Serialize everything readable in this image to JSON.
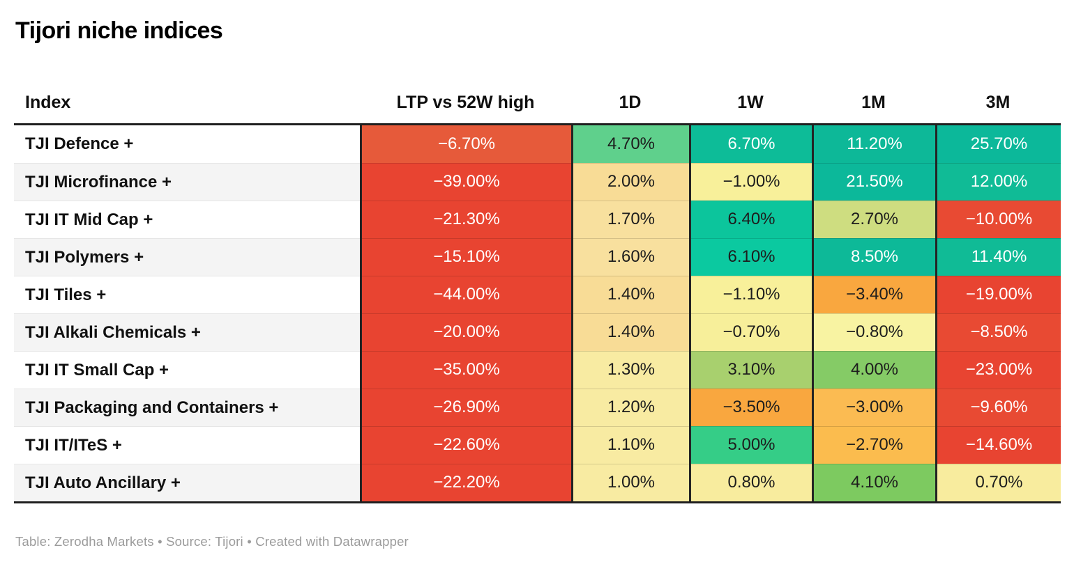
{
  "title": "Tijori niche indices",
  "footer": "Table: Zerodha Markets • Source: Tijori • Created with Datawrapper",
  "colors": {
    "border_dark": "#1f1f1f",
    "row_alt_bg": "#f4f4f4",
    "footer_text": "#9b9b9b",
    "red": "#e84431",
    "teal": "#0db898",
    "pale_yellow": "#f8eba2",
    "orange": "#f9a73f"
  },
  "table": {
    "columns": [
      {
        "key": "index",
        "label": "Index"
      },
      {
        "key": "ltp",
        "label": "LTP vs 52W high"
      },
      {
        "key": "d1",
        "label": "1D"
      },
      {
        "key": "w1",
        "label": "1W"
      },
      {
        "key": "m1",
        "label": "1M"
      },
      {
        "key": "m3",
        "label": "3M"
      }
    ],
    "rows": [
      {
        "label": "TJI Defence +",
        "ltp": {
          "v": "−6.70%",
          "bg": "#e65a3a",
          "fg": "#ffffff"
        },
        "d1": {
          "v": "4.70%",
          "bg": "#5fd08c",
          "fg": "#1d1d1d"
        },
        "w1": {
          "v": "6.70%",
          "bg": "#0dbc98",
          "fg": "#ffffff"
        },
        "m1": {
          "v": "11.20%",
          "bg": "#0db898",
          "fg": "#ffffff"
        },
        "m3": {
          "v": "25.70%",
          "bg": "#0cb89a",
          "fg": "#ffffff"
        }
      },
      {
        "label": "TJI Microfinance +",
        "ltp": {
          "v": "−39.00%",
          "bg": "#e84431",
          "fg": "#ffffff"
        },
        "d1": {
          "v": "2.00%",
          "bg": "#f8dc96",
          "fg": "#1d1d1d"
        },
        "w1": {
          "v": "−1.00%",
          "bg": "#f8f09a",
          "fg": "#1d1d1d"
        },
        "m1": {
          "v": "21.50%",
          "bg": "#0cb89a",
          "fg": "#ffffff"
        },
        "m3": {
          "v": "12.00%",
          "bg": "#10bb96",
          "fg": "#ffffff"
        }
      },
      {
        "label": "TJI IT Mid Cap +",
        "ltp": {
          "v": "−21.30%",
          "bg": "#e84431",
          "fg": "#ffffff"
        },
        "d1": {
          "v": "1.70%",
          "bg": "#f8e09e",
          "fg": "#1d1d1d"
        },
        "w1": {
          "v": "6.40%",
          "bg": "#0cc59c",
          "fg": "#1d1d1d"
        },
        "m1": {
          "v": "2.70%",
          "bg": "#cedd80",
          "fg": "#1d1d1d"
        },
        "m3": {
          "v": "−10.00%",
          "bg": "#e84a33",
          "fg": "#ffffff"
        }
      },
      {
        "label": "TJI Polymers +",
        "ltp": {
          "v": "−15.10%",
          "bg": "#e84431",
          "fg": "#ffffff"
        },
        "d1": {
          "v": "1.60%",
          "bg": "#f8e09e",
          "fg": "#1d1d1d"
        },
        "w1": {
          "v": "6.10%",
          "bg": "#0bc9a0",
          "fg": "#1d1d1d"
        },
        "m1": {
          "v": "8.50%",
          "bg": "#0db998",
          "fg": "#ffffff"
        },
        "m3": {
          "v": "11.40%",
          "bg": "#10bb96",
          "fg": "#ffffff"
        }
      },
      {
        "label": "TJI Tiles +",
        "ltp": {
          "v": "−44.00%",
          "bg": "#e84431",
          "fg": "#ffffff"
        },
        "d1": {
          "v": "1.40%",
          "bg": "#f8dc96",
          "fg": "#1d1d1d"
        },
        "w1": {
          "v": "−1.10%",
          "bg": "#f8f09a",
          "fg": "#1d1d1d"
        },
        "m1": {
          "v": "−3.40%",
          "bg": "#f9a73f",
          "fg": "#1d1d1d"
        },
        "m3": {
          "v": "−19.00%",
          "bg": "#e84431",
          "fg": "#ffffff"
        }
      },
      {
        "label": "TJI Alkali Chemicals +",
        "ltp": {
          "v": "−20.00%",
          "bg": "#e84431",
          "fg": "#ffffff"
        },
        "d1": {
          "v": "1.40%",
          "bg": "#f8dc96",
          "fg": "#1d1d1d"
        },
        "w1": {
          "v": "−0.70%",
          "bg": "#f7ef9a",
          "fg": "#1d1d1d"
        },
        "m1": {
          "v": "−0.80%",
          "bg": "#f8f3a2",
          "fg": "#1d1d1d"
        },
        "m3": {
          "v": "−8.50%",
          "bg": "#e84a33",
          "fg": "#ffffff"
        }
      },
      {
        "label": "TJI IT Small Cap +",
        "ltp": {
          "v": "−35.00%",
          "bg": "#e84431",
          "fg": "#ffffff"
        },
        "d1": {
          "v": "1.30%",
          "bg": "#f8eba2",
          "fg": "#1d1d1d"
        },
        "w1": {
          "v": "3.10%",
          "bg": "#a8d06e",
          "fg": "#1d1d1d"
        },
        "m1": {
          "v": "4.00%",
          "bg": "#85cb66",
          "fg": "#1d1d1d"
        },
        "m3": {
          "v": "−23.00%",
          "bg": "#e84431",
          "fg": "#ffffff"
        }
      },
      {
        "label": "TJI Packaging and Containers +",
        "ltp": {
          "v": "−26.90%",
          "bg": "#e84431",
          "fg": "#ffffff"
        },
        "d1": {
          "v": "1.20%",
          "bg": "#f8eba2",
          "fg": "#1d1d1d"
        },
        "w1": {
          "v": "−3.50%",
          "bg": "#f9a73f",
          "fg": "#1d1d1d"
        },
        "m1": {
          "v": "−3.00%",
          "bg": "#fbbb52",
          "fg": "#1d1d1d"
        },
        "m3": {
          "v": "−9.60%",
          "bg": "#e84a33",
          "fg": "#ffffff"
        }
      },
      {
        "label": "TJI IT/ITeS +",
        "ltp": {
          "v": "−22.60%",
          "bg": "#e84431",
          "fg": "#ffffff"
        },
        "d1": {
          "v": "1.10%",
          "bg": "#f8eba2",
          "fg": "#1d1d1d"
        },
        "w1": {
          "v": "5.00%",
          "bg": "#35cd87",
          "fg": "#1d1d1d"
        },
        "m1": {
          "v": "−2.70%",
          "bg": "#fbbc4e",
          "fg": "#1d1d1d"
        },
        "m3": {
          "v": "−14.60%",
          "bg": "#e84431",
          "fg": "#ffffff"
        }
      },
      {
        "label": "TJI Auto Ancillary +",
        "ltp": {
          "v": "−22.20%",
          "bg": "#e84431",
          "fg": "#ffffff"
        },
        "d1": {
          "v": "1.00%",
          "bg": "#f8eba2",
          "fg": "#1d1d1d"
        },
        "w1": {
          "v": "0.80%",
          "bg": "#f8ec9e",
          "fg": "#1d1d1d"
        },
        "m1": {
          "v": "4.10%",
          "bg": "#7dca60",
          "fg": "#1d1d1d"
        },
        "m3": {
          "v": "0.70%",
          "bg": "#f8ec9e",
          "fg": "#1d1d1d"
        }
      }
    ]
  },
  "chart_data": {
    "type": "table",
    "title": "Tijori niche indices",
    "columns": [
      "Index",
      "LTP vs 52W high",
      "1D",
      "1W",
      "1M",
      "3M"
    ],
    "unit": "%",
    "heatmap": true,
    "rows": [
      {
        "index": "TJI Defence +",
        "ltp_vs_52w_high": -6.7,
        "d1": 4.7,
        "w1": 6.7,
        "m1": 11.2,
        "m3": 25.7
      },
      {
        "index": "TJI Microfinance +",
        "ltp_vs_52w_high": -39.0,
        "d1": 2.0,
        "w1": -1.0,
        "m1": 21.5,
        "m3": 12.0
      },
      {
        "index": "TJI IT Mid Cap +",
        "ltp_vs_52w_high": -21.3,
        "d1": 1.7,
        "w1": 6.4,
        "m1": 2.7,
        "m3": -10.0
      },
      {
        "index": "TJI Polymers +",
        "ltp_vs_52w_high": -15.1,
        "d1": 1.6,
        "w1": 6.1,
        "m1": 8.5,
        "m3": 11.4
      },
      {
        "index": "TJI Tiles +",
        "ltp_vs_52w_high": -44.0,
        "d1": 1.4,
        "w1": -1.1,
        "m1": -3.4,
        "m3": -19.0
      },
      {
        "index": "TJI Alkali Chemicals +",
        "ltp_vs_52w_high": -20.0,
        "d1": 1.4,
        "w1": -0.7,
        "m1": -0.8,
        "m3": -8.5
      },
      {
        "index": "TJI IT Small Cap +",
        "ltp_vs_52w_high": -35.0,
        "d1": 1.3,
        "w1": 3.1,
        "m1": 4.0,
        "m3": -23.0
      },
      {
        "index": "TJI Packaging and Containers +",
        "ltp_vs_52w_high": -26.9,
        "d1": 1.2,
        "w1": -3.5,
        "m1": -3.0,
        "m3": -9.6
      },
      {
        "index": "TJI IT/ITeS +",
        "ltp_vs_52w_high": -22.6,
        "d1": 1.1,
        "w1": 5.0,
        "m1": -2.7,
        "m3": -14.6
      },
      {
        "index": "TJI Auto Ancillary +",
        "ltp_vs_52w_high": -22.2,
        "d1": 1.0,
        "w1": 0.8,
        "m1": 4.1,
        "m3": 0.7
      }
    ]
  }
}
